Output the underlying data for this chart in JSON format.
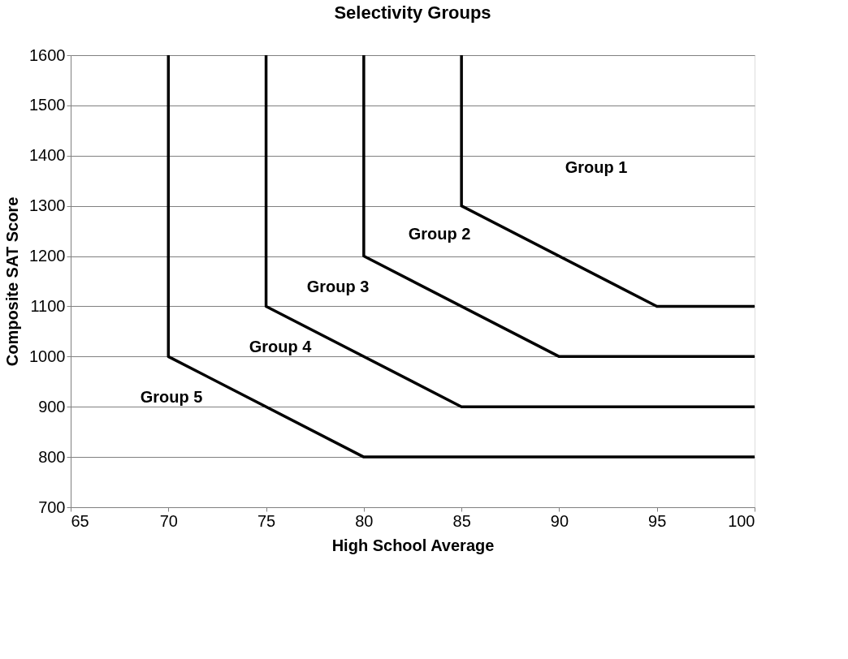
{
  "chart_data": {
    "type": "line",
    "title": "Selectivity Groups",
    "xlabel": "High School Average",
    "ylabel": "Composite SAT Score",
    "series": [
      {
        "color": "#000000",
        "x": [
          70,
          70,
          80,
          100
        ],
        "values": [
          1600,
          1000,
          800,
          800
        ]
      },
      {
        "color": "#000000",
        "x": [
          75,
          75,
          85,
          100
        ],
        "values": [
          1600,
          1100,
          900,
          900
        ]
      },
      {
        "color": "#000000",
        "x": [
          80,
          80,
          90,
          100
        ],
        "values": [
          1600,
          1200,
          1000,
          1000
        ]
      },
      {
        "color": "#000000",
        "x": [
          85,
          85,
          95,
          100
        ],
        "values": [
          1600,
          1300,
          1100,
          1100
        ]
      }
    ],
    "annotations": [
      "Group 1",
      "Group 2",
      "Group 3",
      "Group 4",
      "Group 5"
    ],
    "xlim": [
      65,
      100
    ],
    "xticks": [
      65,
      70,
      75,
      80,
      85,
      90,
      95,
      100
    ],
    "ylim": [
      700,
      1600
    ],
    "yticks": [
      700,
      800,
      900,
      1000,
      1100,
      1200,
      1300,
      1400,
      1500,
      1600
    ],
    "grid": "y",
    "legend": false,
    "marker": "none",
    "line_style": "solid"
  }
}
